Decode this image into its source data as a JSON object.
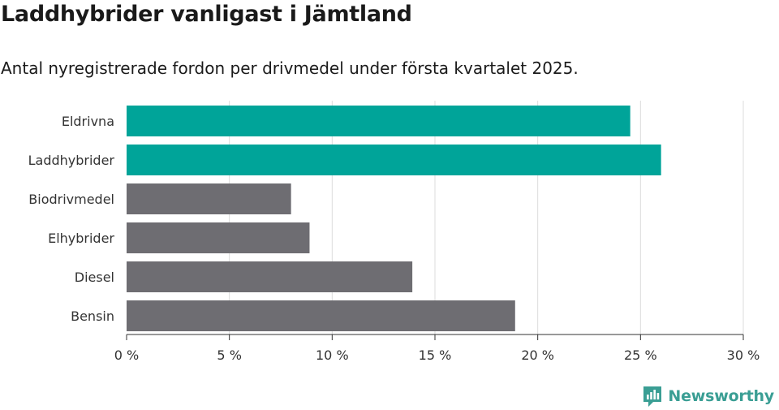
{
  "header": {
    "title": "Laddhybrider vanligast i Jämtland",
    "subtitle": "Antal nyregistrerade fordon per drivmedel under första kvartalet 2025."
  },
  "brand": {
    "name": "Newsworthy",
    "icon": "newsworthy-logo-icon",
    "color": "#3a9e94"
  },
  "chart_data": {
    "type": "bar",
    "orientation": "horizontal",
    "title": "",
    "xlabel": "",
    "ylabel": "",
    "xlim": [
      0,
      30
    ],
    "x_ticks": [
      0,
      5,
      10,
      15,
      20,
      25,
      30
    ],
    "x_tick_labels": [
      "0 %",
      "5 %",
      "10 %",
      "15 %",
      "20 %",
      "25 %",
      "30 %"
    ],
    "grid": true,
    "legend": "none",
    "categories": [
      "Eldrivna",
      "Laddhybrider",
      "Biodrivmedel",
      "Elhybrider",
      "Diesel",
      "Bensin"
    ],
    "values": [
      24.5,
      26.0,
      8.0,
      8.9,
      13.9,
      18.9
    ],
    "colors": [
      "#00a499",
      "#00a499",
      "#6e6d72",
      "#6e6d72",
      "#6e6d72",
      "#6e6d72"
    ]
  }
}
